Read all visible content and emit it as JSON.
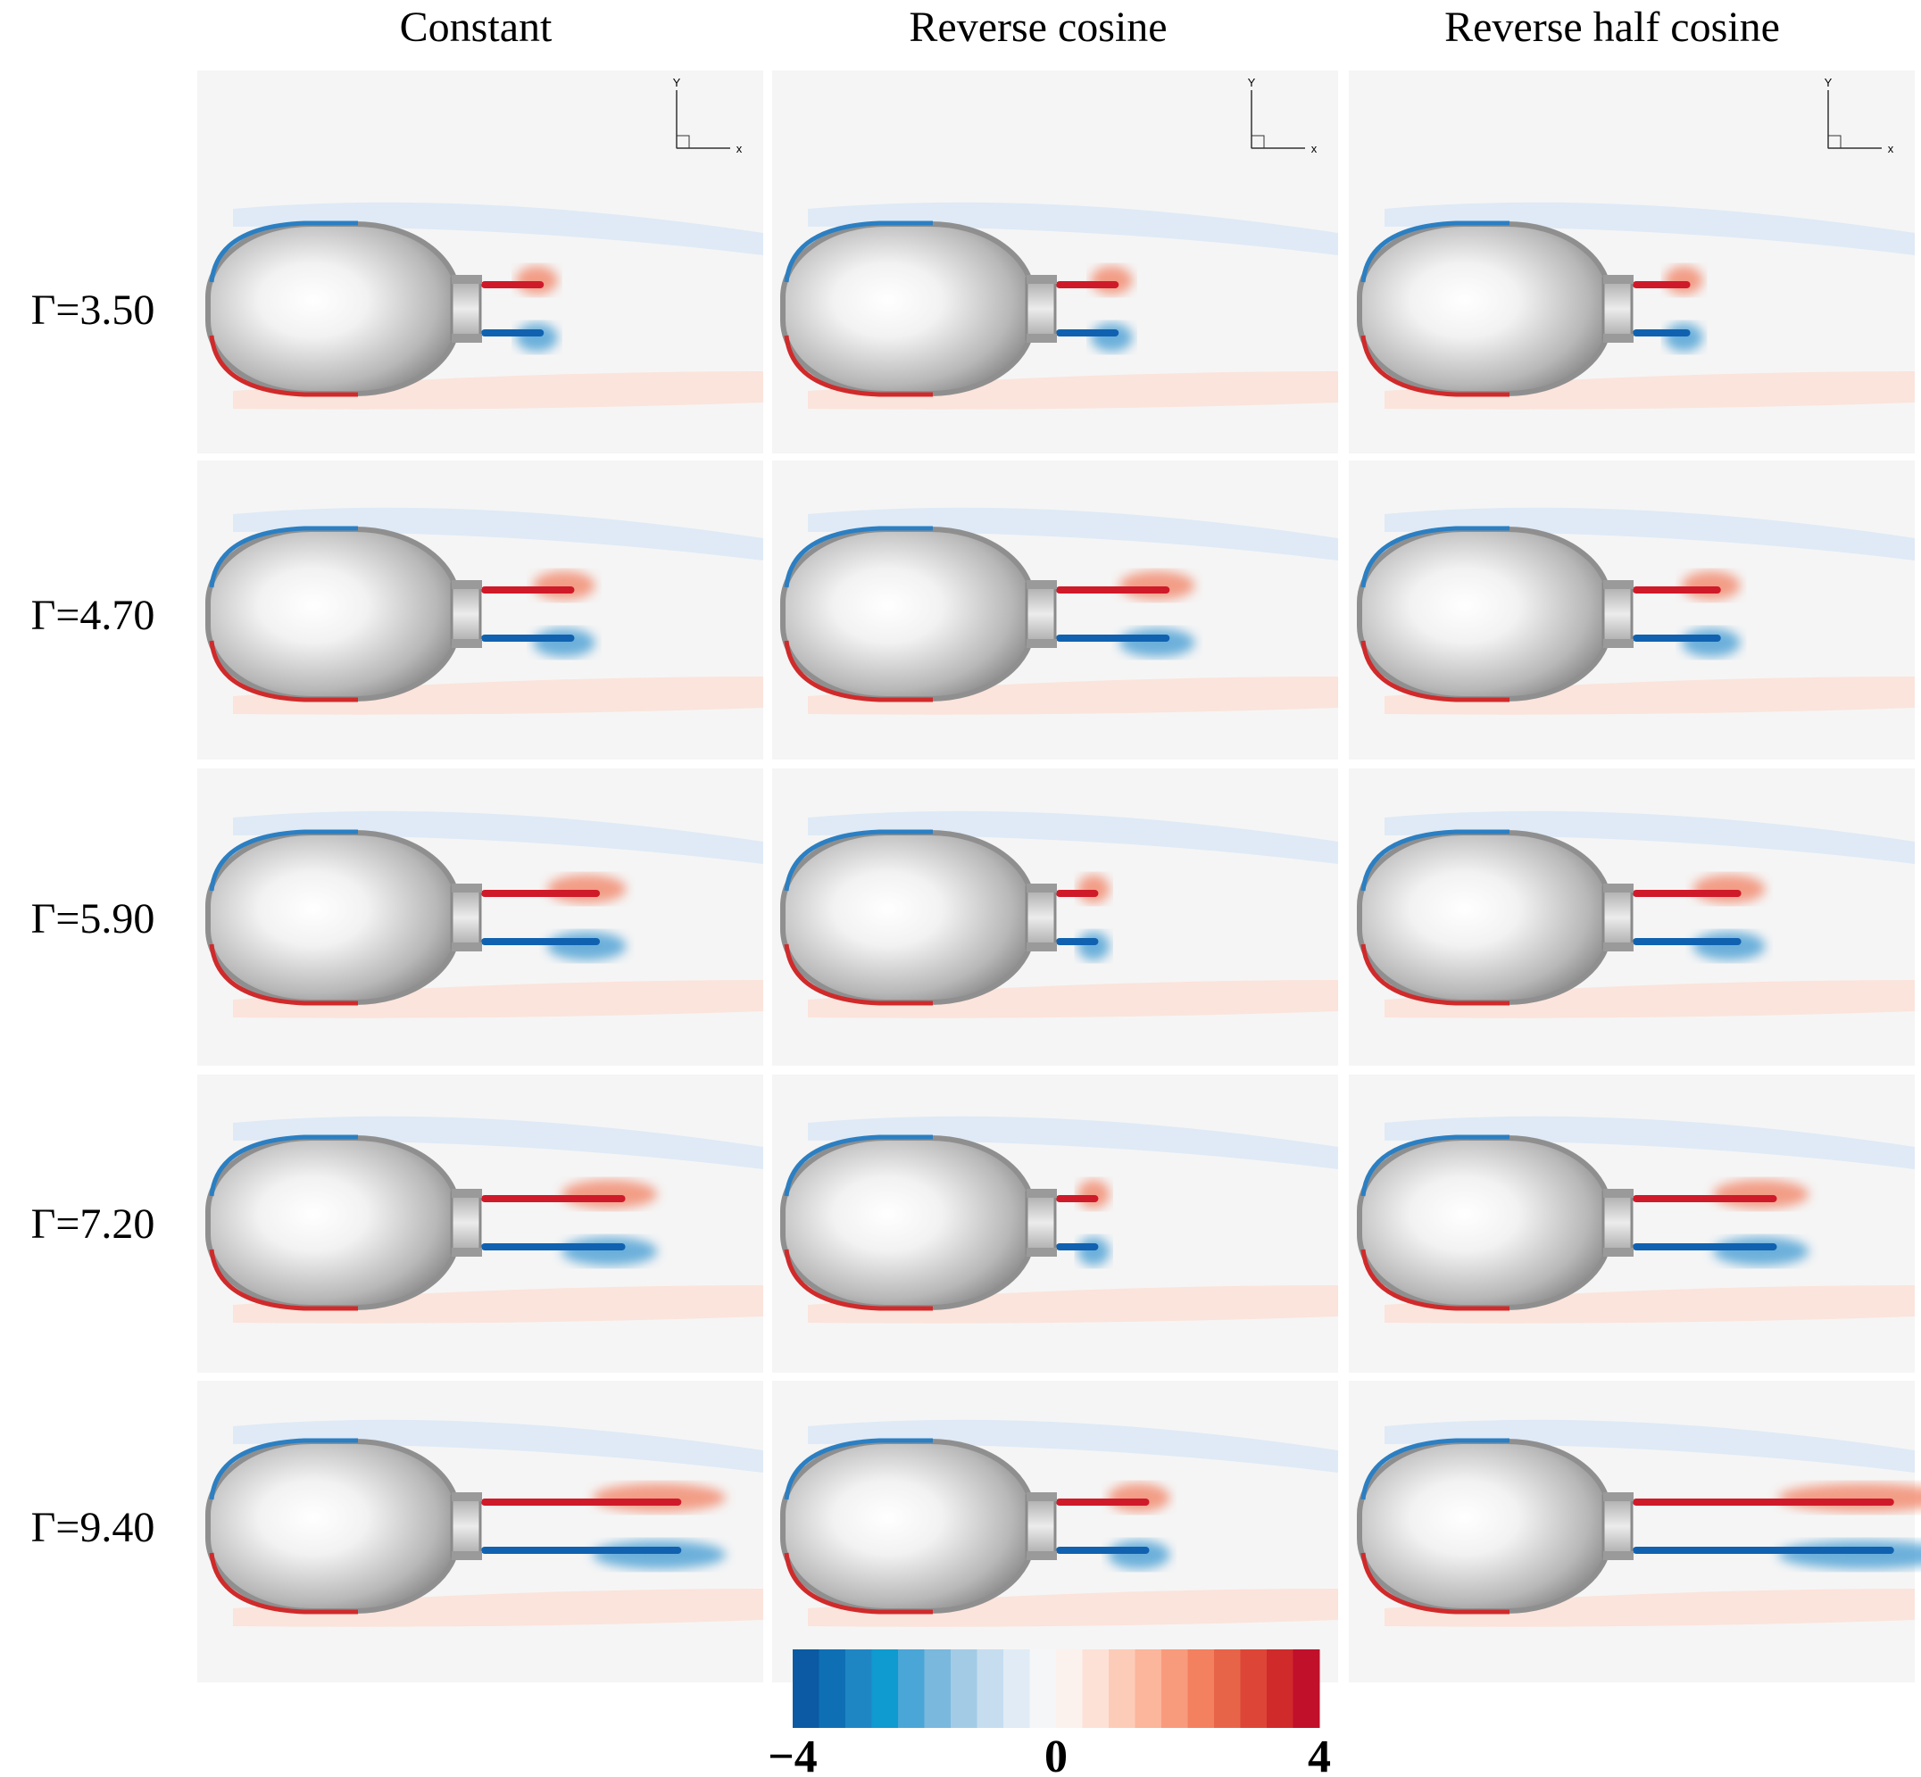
{
  "column_headers": [
    "Constant",
    "Reverse cosine",
    "Reverse half cosine"
  ],
  "row_labels": [
    "Γ=3.50",
    "Γ=4.70",
    "Γ=5.90",
    "Γ=7.20",
    "Γ=9.40"
  ],
  "axis_triad": {
    "x": "x",
    "y": "Y"
  },
  "colorbar": {
    "lim": [
      -4,
      4
    ],
    "ticks": [
      {
        "value": -4,
        "label": "−4"
      },
      0,
      4
    ],
    "colors": [
      "#0b5aa3",
      "#0f6fb5",
      "#1f86c4",
      "#0f9ad0",
      "#4aa6d6",
      "#7ab8de",
      "#a3cbe6",
      "#c6ddef",
      "#e0ebf5",
      "#f4f6f8",
      "#fbf2ee",
      "#fde1d6",
      "#fcccb8",
      "#fbb69c",
      "#f89b7c",
      "#f3805f",
      "#e86449",
      "#dd4637",
      "#d02a2b",
      "#c0102a"
    ]
  }
}
